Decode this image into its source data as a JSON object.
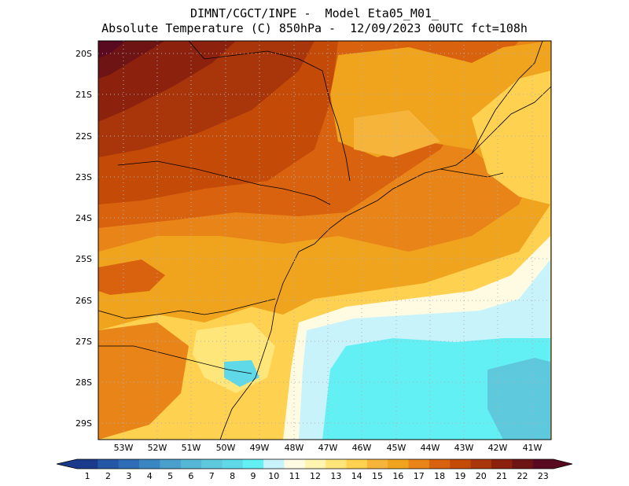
{
  "header": {
    "line1": "DIMNT/CGCT/INPE -  Model Eta05_M01_",
    "line2": "Absolute Temperature (C) 850hPa -  12/09/2023 00UTC fct=108h"
  },
  "axes": {
    "lat_labels": [
      "20S",
      "21S",
      "22S",
      "23S",
      "24S",
      "25S",
      "26S",
      "27S",
      "28S",
      "29S"
    ],
    "lon_labels": [
      "53W",
      "52W",
      "51W",
      "50W",
      "49W",
      "48W",
      "47W",
      "46W",
      "45W",
      "44W",
      "43W",
      "42W",
      "41W"
    ]
  },
  "colorbar": {
    "labels": [
      "1",
      "2",
      "3",
      "4",
      "5",
      "6",
      "7",
      "8",
      "9",
      "10",
      "11",
      "12",
      "13",
      "14",
      "15",
      "16",
      "17",
      "18",
      "19",
      "20",
      "21",
      "22",
      "23"
    ],
    "colors": [
      "#1a3a8c",
      "#2458a6",
      "#2e6db5",
      "#3a86c2",
      "#4a9fcc",
      "#56b6d6",
      "#5ec8dd",
      "#5fd8e8",
      "#62f0f5",
      "#c9f3fb",
      "#fffbe3",
      "#fff5b0",
      "#ffe67a",
      "#ffd150",
      "#f6b43a",
      "#f0a31c",
      "#e88418",
      "#d8620e",
      "#c44a08",
      "#a9360a",
      "#8c220e",
      "#6e1414",
      "#5a0a20"
    ]
  },
  "colors": {
    "coast_line": "#000000",
    "grid_dots": "#b0b0b0"
  }
}
